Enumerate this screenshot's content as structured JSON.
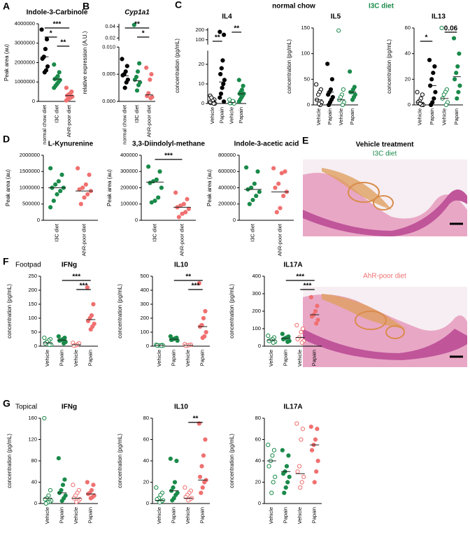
{
  "chart_data": [
    {
      "type": "dotplot",
      "panel": "A",
      "title": "Indole-3-Carbinole",
      "ylabel": "Peak area (au)",
      "categories": [
        "normal chow diet",
        "I3C diet",
        "AhR-poor diet"
      ],
      "colors": [
        "#000000",
        "#1a8a4a",
        "#f07070"
      ],
      "hollow": [
        false,
        false,
        false
      ],
      "values": [
        [
          3700000,
          3200000,
          2700000,
          2300000,
          2200000,
          1800000,
          1600000,
          1500000
        ],
        [
          1900000,
          1500000,
          1300000,
          1200000,
          1150000,
          1100000,
          1000000,
          900000,
          800000,
          700000
        ],
        [
          700000,
          500000,
          400000,
          350000,
          300000,
          250000,
          200000,
          150000,
          100000,
          50000
        ]
      ],
      "medians": [
        2300000,
        1150000,
        300000
      ],
      "ylim": [
        0,
        4000000
      ],
      "yticks": [
        0,
        1000000,
        2000000,
        3000000,
        4000000
      ],
      "significance": [
        {
          "between": [
            1,
            2
          ],
          "label": "**"
        },
        {
          "between": [
            0,
            1
          ],
          "label": "*"
        },
        {
          "between": [
            0,
            2
          ],
          "label": "***"
        }
      ]
    },
    {
      "type": "dotplot",
      "panel": "B",
      "title": "Cyp1a1",
      "title_italic": true,
      "ylabel": "relative expression (A.U.)",
      "categories": [
        "normal chow diet",
        "I3C diet",
        "AhR-poor diet"
      ],
      "colors": [
        "#000000",
        "#1a8a4a",
        "#f07070"
      ],
      "hollow": [
        false,
        false,
        false
      ],
      "values": [
        [
          0.0078,
          0.0065,
          0.0055,
          0.005,
          0.0048,
          0.004,
          0.0035,
          0.0025
        ],
        [
          0.043,
          0.007,
          0.0055,
          0.0045,
          0.004,
          0.0035,
          0.003,
          0.002
        ],
        [
          0.0062,
          0.005,
          0.004,
          0.0015,
          0.001,
          0.0008,
          0.0006
        ]
      ],
      "medians": [
        0.0047,
        0.0038,
        0.0012
      ],
      "ysegments": [
        {
          "ylim": [
            0,
            0.01
          ],
          "yticks": [
            {
              "value": 0,
              "label": "0.000"
            },
            0.005,
            {
              "value": 0.01,
              "label": "0.010"
            }
          ]
        },
        {
          "ylim": [
            0.015,
            0.045
          ],
          "yticks": [
            0.02,
            0.04
          ]
        }
      ],
      "significance": [
        {
          "between": [
            1,
            2
          ],
          "label": "*"
        },
        {
          "between": [
            0,
            2
          ],
          "label": "**"
        }
      ]
    },
    {
      "type": "dotplot",
      "panel": "C",
      "title": "IL4",
      "ylabel": "concentration (pg/mL)",
      "categories": [
        "Vehicle",
        "Papain",
        "Vehicle",
        "Papain"
      ],
      "colors": [
        "#000000",
        "#000000",
        "#1a8a4a",
        "#1a8a4a"
      ],
      "hollow": [
        true,
        false,
        true,
        false
      ],
      "values": [
        [
          4,
          2,
          1,
          0.5,
          0.3,
          0,
          0,
          1.5,
          3,
          0.8
        ],
        [
          180,
          150,
          22,
          18,
          15,
          12,
          10,
          8,
          5,
          3,
          1
        ],
        [
          2,
          1,
          0.5,
          0.3,
          0.2,
          0,
          1.2
        ],
        [
          12,
          9,
          7,
          6,
          5,
          5,
          4,
          3,
          2,
          1
        ]
      ],
      "medians": [
        1,
        11,
        0.5,
        5
      ],
      "ysegments": [
        {
          "ylim": [
            0,
            27
          ],
          "yticks": [
            0,
            10,
            20
          ]
        },
        {
          "ylim": [
            50,
            220
          ],
          "yticks": [
            100,
            200
          ]
        }
      ],
      "significance": [
        {
          "between": [
            0,
            1
          ],
          "label": "**"
        },
        {
          "between": [
            2,
            3
          ],
          "label": "**"
        }
      ]
    },
    {
      "type": "dotplot",
      "title": "IL5",
      "ylabel": "concentration (pg/mL)",
      "categories": [
        "Vehicle",
        "Papain",
        "Vehicle",
        "Papain"
      ],
      "colors": [
        "#000000",
        "#000000",
        "#1a8a4a",
        "#1a8a4a"
      ],
      "hollow": [
        true,
        false,
        true,
        false
      ],
      "values": [
        [
          40,
          30,
          25,
          20,
          10,
          5,
          0,
          2
        ],
        [
          80,
          50,
          30,
          25,
          20,
          15,
          10,
          5,
          0
        ],
        [
          145,
          30,
          20,
          15,
          10,
          5,
          0
        ],
        [
          65,
          35,
          30,
          25,
          25,
          20,
          15,
          10
        ]
      ],
      "medians": [
        10,
        25,
        10,
        25
      ],
      "ylim": [
        0,
        150
      ],
      "yticks": [
        0,
        50,
        100,
        150
      ],
      "significance": []
    },
    {
      "type": "dotplot",
      "title": "IL13",
      "ylabel": "concentration (pg/mL)",
      "categories": [
        "Vehicle",
        "Papain",
        "Vehicle",
        "Papain"
      ],
      "colors": [
        "#000000",
        "#000000",
        "#1a8a4a",
        "#1a8a4a"
      ],
      "hollow": [
        true,
        false,
        true,
        false
      ],
      "values": [
        [
          10,
          8,
          5,
          3,
          2,
          0,
          0,
          1
        ],
        [
          35,
          30,
          25,
          20,
          15,
          10,
          5,
          2,
          0
        ],
        [
          60,
          12,
          10,
          8,
          5,
          2,
          0
        ],
        [
          52,
          40,
          30,
          25,
          20,
          15,
          10,
          5
        ]
      ],
      "medians": [
        2,
        15,
        5,
        22
      ],
      "ylim": [
        0,
        60
      ],
      "yticks": [
        0,
        20,
        40,
        60
      ],
      "significance": [
        {
          "between": [
            0,
            1
          ],
          "label": "*"
        },
        {
          "between": [
            2,
            3
          ],
          "label": "0.06"
        }
      ]
    },
    {
      "type": "dotplot",
      "panel": "D",
      "title": "L-Kynurenine",
      "ylabel": "Peak area (au)",
      "categories": [
        "I3C diet",
        "AhR-poor diet"
      ],
      "colors": [
        "#1a8a4a",
        "#f07070"
      ],
      "hollow": [
        false,
        false
      ],
      "values": [
        [
          1600000,
          1400000,
          1200000,
          1100000,
          1000000,
          1000000,
          900000,
          800000,
          600000,
          400000
        ],
        [
          1600000,
          1400000,
          1100000,
          1000000,
          950000,
          900000,
          800000,
          700000,
          500000
        ]
      ],
      "medians": [
        1000000,
        900000
      ],
      "ylim": [
        0,
        2000000
      ],
      "yticks": [
        0,
        500000,
        1000000,
        1500000,
        2000000
      ],
      "significance": []
    },
    {
      "type": "dotplot",
      "title": "3,3-Diindolyl-methane",
      "ylabel": "Peak area (au)",
      "categories": [
        "I3C diet",
        "AhR-poor diet"
      ],
      "colors": [
        "#1a8a4a",
        "#f07070"
      ],
      "hollow": [
        false,
        false
      ],
      "values": [
        [
          330000,
          300000,
          250000,
          240000,
          230000,
          200000,
          140000,
          120000,
          110000
        ],
        [
          170000,
          130000,
          100000,
          90000,
          80000,
          70000,
          50000,
          40000,
          20000
        ]
      ],
      "medians": [
        235000,
        80000
      ],
      "ylim": [
        0,
        400000
      ],
      "yticks": [
        0,
        100000,
        200000,
        300000,
        400000
      ],
      "significance": [
        {
          "between": [
            0,
            1
          ],
          "label": "***"
        }
      ]
    },
    {
      "type": "dotplot",
      "title": "Indole-3-acetic acid",
      "ylabel": "Peak area (au)",
      "categories": [
        "I3C diet",
        "AhR-poor diet"
      ],
      "colors": [
        "#1a8a4a",
        "#f07070"
      ],
      "hollow": [
        false,
        false
      ],
      "values": [
        [
          650000,
          600000,
          450000,
          400000,
          380000,
          350000,
          300000,
          250000,
          200000
        ],
        [
          640000,
          600000,
          580000,
          450000,
          400000,
          350000,
          300000,
          150000,
          100000
        ]
      ],
      "medians": [
        380000,
        350000
      ],
      "ylim": [
        0,
        800000
      ],
      "yticks": [
        0,
        200000,
        400000,
        600000,
        800000
      ],
      "significance": []
    },
    {
      "type": "dotplot",
      "panel": "F",
      "row_label": "Footpad",
      "title": "IFNg",
      "ylabel": "concentration (pg/mL)",
      "categories": [
        "Vehicle",
        "Papain",
        "Vehicle",
        "Papain"
      ],
      "colors": [
        "#1a8a4a",
        "#1a8a4a",
        "#f07070",
        "#f07070"
      ],
      "hollow": [
        true,
        false,
        true,
        false
      ],
      "values": [
        [
          30,
          25,
          20,
          15,
          10,
          5,
          5
        ],
        [
          35,
          30,
          25,
          22,
          20,
          15,
          10
        ],
        [
          12,
          10,
          5,
          3,
          2
        ],
        [
          210,
          150,
          110,
          100,
          90,
          80,
          70,
          60
        ]
      ],
      "medians": [
        12,
        22,
        5,
        95
      ],
      "ylim": [
        0,
        250
      ],
      "yticks": [
        0,
        50,
        100,
        150,
        200,
        250
      ],
      "significance": [
        {
          "between": [
            2,
            3
          ],
          "label": "***"
        },
        {
          "between": [
            1,
            3
          ],
          "label": "***"
        }
      ]
    },
    {
      "type": "dotplot",
      "title": "IL10",
      "ylabel": "concentration (pg/mL)",
      "categories": [
        "Vehicle",
        "Papain",
        "Vehicle",
        "Papain"
      ],
      "colors": [
        "#1a8a4a",
        "#1a8a4a",
        "#f07070",
        "#f07070"
      ],
      "hollow": [
        true,
        false,
        true,
        false
      ],
      "values": [
        [
          10,
          8,
          6,
          5,
          5,
          4,
          3
        ],
        [
          70,
          60,
          55,
          50,
          45,
          40
        ],
        [
          15,
          10,
          8,
          5,
          3
        ],
        [
          450,
          250,
          200,
          150,
          140,
          100,
          70,
          60
        ]
      ],
      "medians": [
        5,
        50,
        5,
        140
      ],
      "ylim": [
        0,
        500
      ],
      "yticks": [
        0,
        100,
        200,
        300,
        400,
        500
      ],
      "significance": [
        {
          "between": [
            2,
            3
          ],
          "label": "***"
        },
        {
          "between": [
            1,
            3
          ],
          "label": "**"
        }
      ]
    },
    {
      "type": "dotplot",
      "title": "IL17A",
      "ylabel": "concentration (pg/mL)",
      "categories": [
        "Vehicle",
        "Papain",
        "Vehicle",
        "Papain"
      ],
      "colors": [
        "#1a8a4a",
        "#1a8a4a",
        "#f07070",
        "#f07070"
      ],
      "hollow": [
        true,
        false,
        true,
        false
      ],
      "values": [
        [
          60,
          50,
          40,
          35,
          30,
          25,
          20
        ],
        [
          70,
          55,
          50,
          45,
          40,
          30,
          25
        ],
        [
          120,
          100,
          80,
          50,
          40,
          30,
          20
        ],
        [
          280,
          230,
          200,
          180,
          170,
          150,
          130
        ]
      ],
      "medians": [
        35,
        45,
        50,
        180
      ],
      "ylim": [
        0,
        400
      ],
      "yticks": [
        0,
        100,
        200,
        300,
        400
      ],
      "significance": [
        {
          "between": [
            2,
            3
          ],
          "label": "***"
        },
        {
          "between": [
            1,
            3
          ],
          "label": "***"
        }
      ]
    },
    {
      "type": "dotplot",
      "panel": "G",
      "row_label": "Topical",
      "title": "IFNg",
      "ylabel": "concentration (pg/mL)",
      "categories": [
        "Vehicle",
        "Papain",
        "Vehicle",
        "Papain"
      ],
      "colors": [
        "#1a8a4a",
        "#1a8a4a",
        "#f07070",
        "#f07070"
      ],
      "hollow": [
        true,
        false,
        true,
        false
      ],
      "values": [
        [
          160,
          25,
          15,
          10,
          8,
          5,
          3,
          2,
          0
        ],
        [
          85,
          45,
          35,
          25,
          20,
          15,
          10,
          5
        ],
        [
          35,
          25,
          20,
          15,
          10,
          8,
          5,
          3
        ],
        [
          40,
          35,
          25,
          20,
          18,
          15,
          12,
          10
        ]
      ],
      "medians": [
        10,
        20,
        10,
        18
      ],
      "ylim": [
        0,
        160
      ],
      "yticks": [
        0,
        40,
        80,
        120,
        160
      ],
      "significance": []
    },
    {
      "type": "dotplot",
      "title": "IL10",
      "ylabel": "concentration (pg/mL)",
      "categories": [
        "Vehicle",
        "Papain",
        "Vehicle",
        "Papain"
      ],
      "colors": [
        "#1a8a4a",
        "#1a8a4a",
        "#f07070",
        "#f07070"
      ],
      "hollow": [
        true,
        false,
        true,
        false
      ],
      "values": [
        [
          15,
          10,
          8,
          5,
          4,
          3,
          2,
          1
        ],
        [
          42,
          40,
          20,
          15,
          12,
          10,
          8,
          5,
          3
        ],
        [
          15,
          12,
          10,
          8,
          6,
          5,
          4,
          3
        ],
        [
          75,
          60,
          45,
          35,
          25,
          22,
          20,
          15,
          10
        ]
      ],
      "medians": [
        3,
        12,
        5,
        22
      ],
      "ylim": [
        0,
        80
      ],
      "yticks": [
        0,
        20,
        40,
        60,
        80
      ],
      "significance": [
        {
          "between": [
            2,
            3
          ],
          "label": "**"
        }
      ]
    },
    {
      "type": "dotplot",
      "title": "IL17A",
      "ylabel": "concentration (pg/mL)",
      "categories": [
        "Vehicle",
        "Papain",
        "Vehicle",
        "Papain"
      ],
      "colors": [
        "#1a8a4a",
        "#1a8a4a",
        "#f07070",
        "#f07070"
      ],
      "hollow": [
        true,
        false,
        true,
        false
      ],
      "values": [
        [
          55,
          50,
          45,
          40,
          35,
          25,
          20,
          10
        ],
        [
          50,
          45,
          35,
          30,
          28,
          25,
          20,
          15,
          10
        ],
        [
          75,
          70,
          60,
          35,
          30,
          25,
          20,
          15
        ],
        [
          72,
          70,
          60,
          55,
          50,
          40,
          30,
          20
        ]
      ],
      "medians": [
        40,
        30,
        28,
        55
      ],
      "ylim": [
        0,
        80
      ],
      "yticks": [
        0,
        20,
        40,
        60,
        80
      ],
      "significance": []
    }
  ],
  "legend": [
    {
      "name": "normal chow",
      "color": "#000000"
    },
    {
      "name": "I3C diet",
      "color": "#1a8a4a"
    }
  ],
  "histology": {
    "panel": "E",
    "title": "Vehicle treatment",
    "images": [
      {
        "label": "I3C diet",
        "color": "#1a8a4a"
      },
      {
        "label": "AhR-poor diet",
        "color": "#f07070"
      }
    ]
  }
}
